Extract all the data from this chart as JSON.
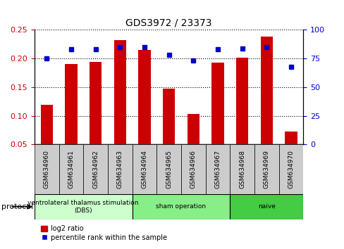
{
  "title": "GDS3972 / 23373",
  "samples": [
    "GSM634960",
    "GSM634961",
    "GSM634962",
    "GSM634963",
    "GSM634964",
    "GSM634965",
    "GSM634966",
    "GSM634967",
    "GSM634968",
    "GSM634969",
    "GSM634970"
  ],
  "log2_ratio": [
    0.119,
    0.19,
    0.194,
    0.232,
    0.215,
    0.147,
    0.103,
    0.193,
    0.202,
    0.238,
    0.072
  ],
  "percentile_rank": [
    75,
    83,
    83,
    85,
    85,
    78,
    73,
    83,
    84,
    85,
    68
  ],
  "bar_color": "#cc0000",
  "dot_color": "#0000cc",
  "ylim_left": [
    0.05,
    0.25
  ],
  "ylim_right": [
    0,
    100
  ],
  "yticks_left": [
    0.05,
    0.1,
    0.15,
    0.2,
    0.25
  ],
  "yticks_right": [
    0,
    25,
    50,
    75,
    100
  ],
  "groups": [
    {
      "label": "ventrolateral thalamus stimulation\n(DBS)",
      "start": 0,
      "end": 4,
      "color": "#ccffcc"
    },
    {
      "label": "sham operation",
      "start": 4,
      "end": 8,
      "color": "#88ee88"
    },
    {
      "label": "naive",
      "start": 8,
      "end": 11,
      "color": "#44cc44"
    }
  ],
  "legend_bar_label": "log2 ratio",
  "legend_dot_label": "percentile rank within the sample",
  "xlabel_protocol": "protocol",
  "bg_color": "#ffffff",
  "tick_box_color": "#cccccc"
}
